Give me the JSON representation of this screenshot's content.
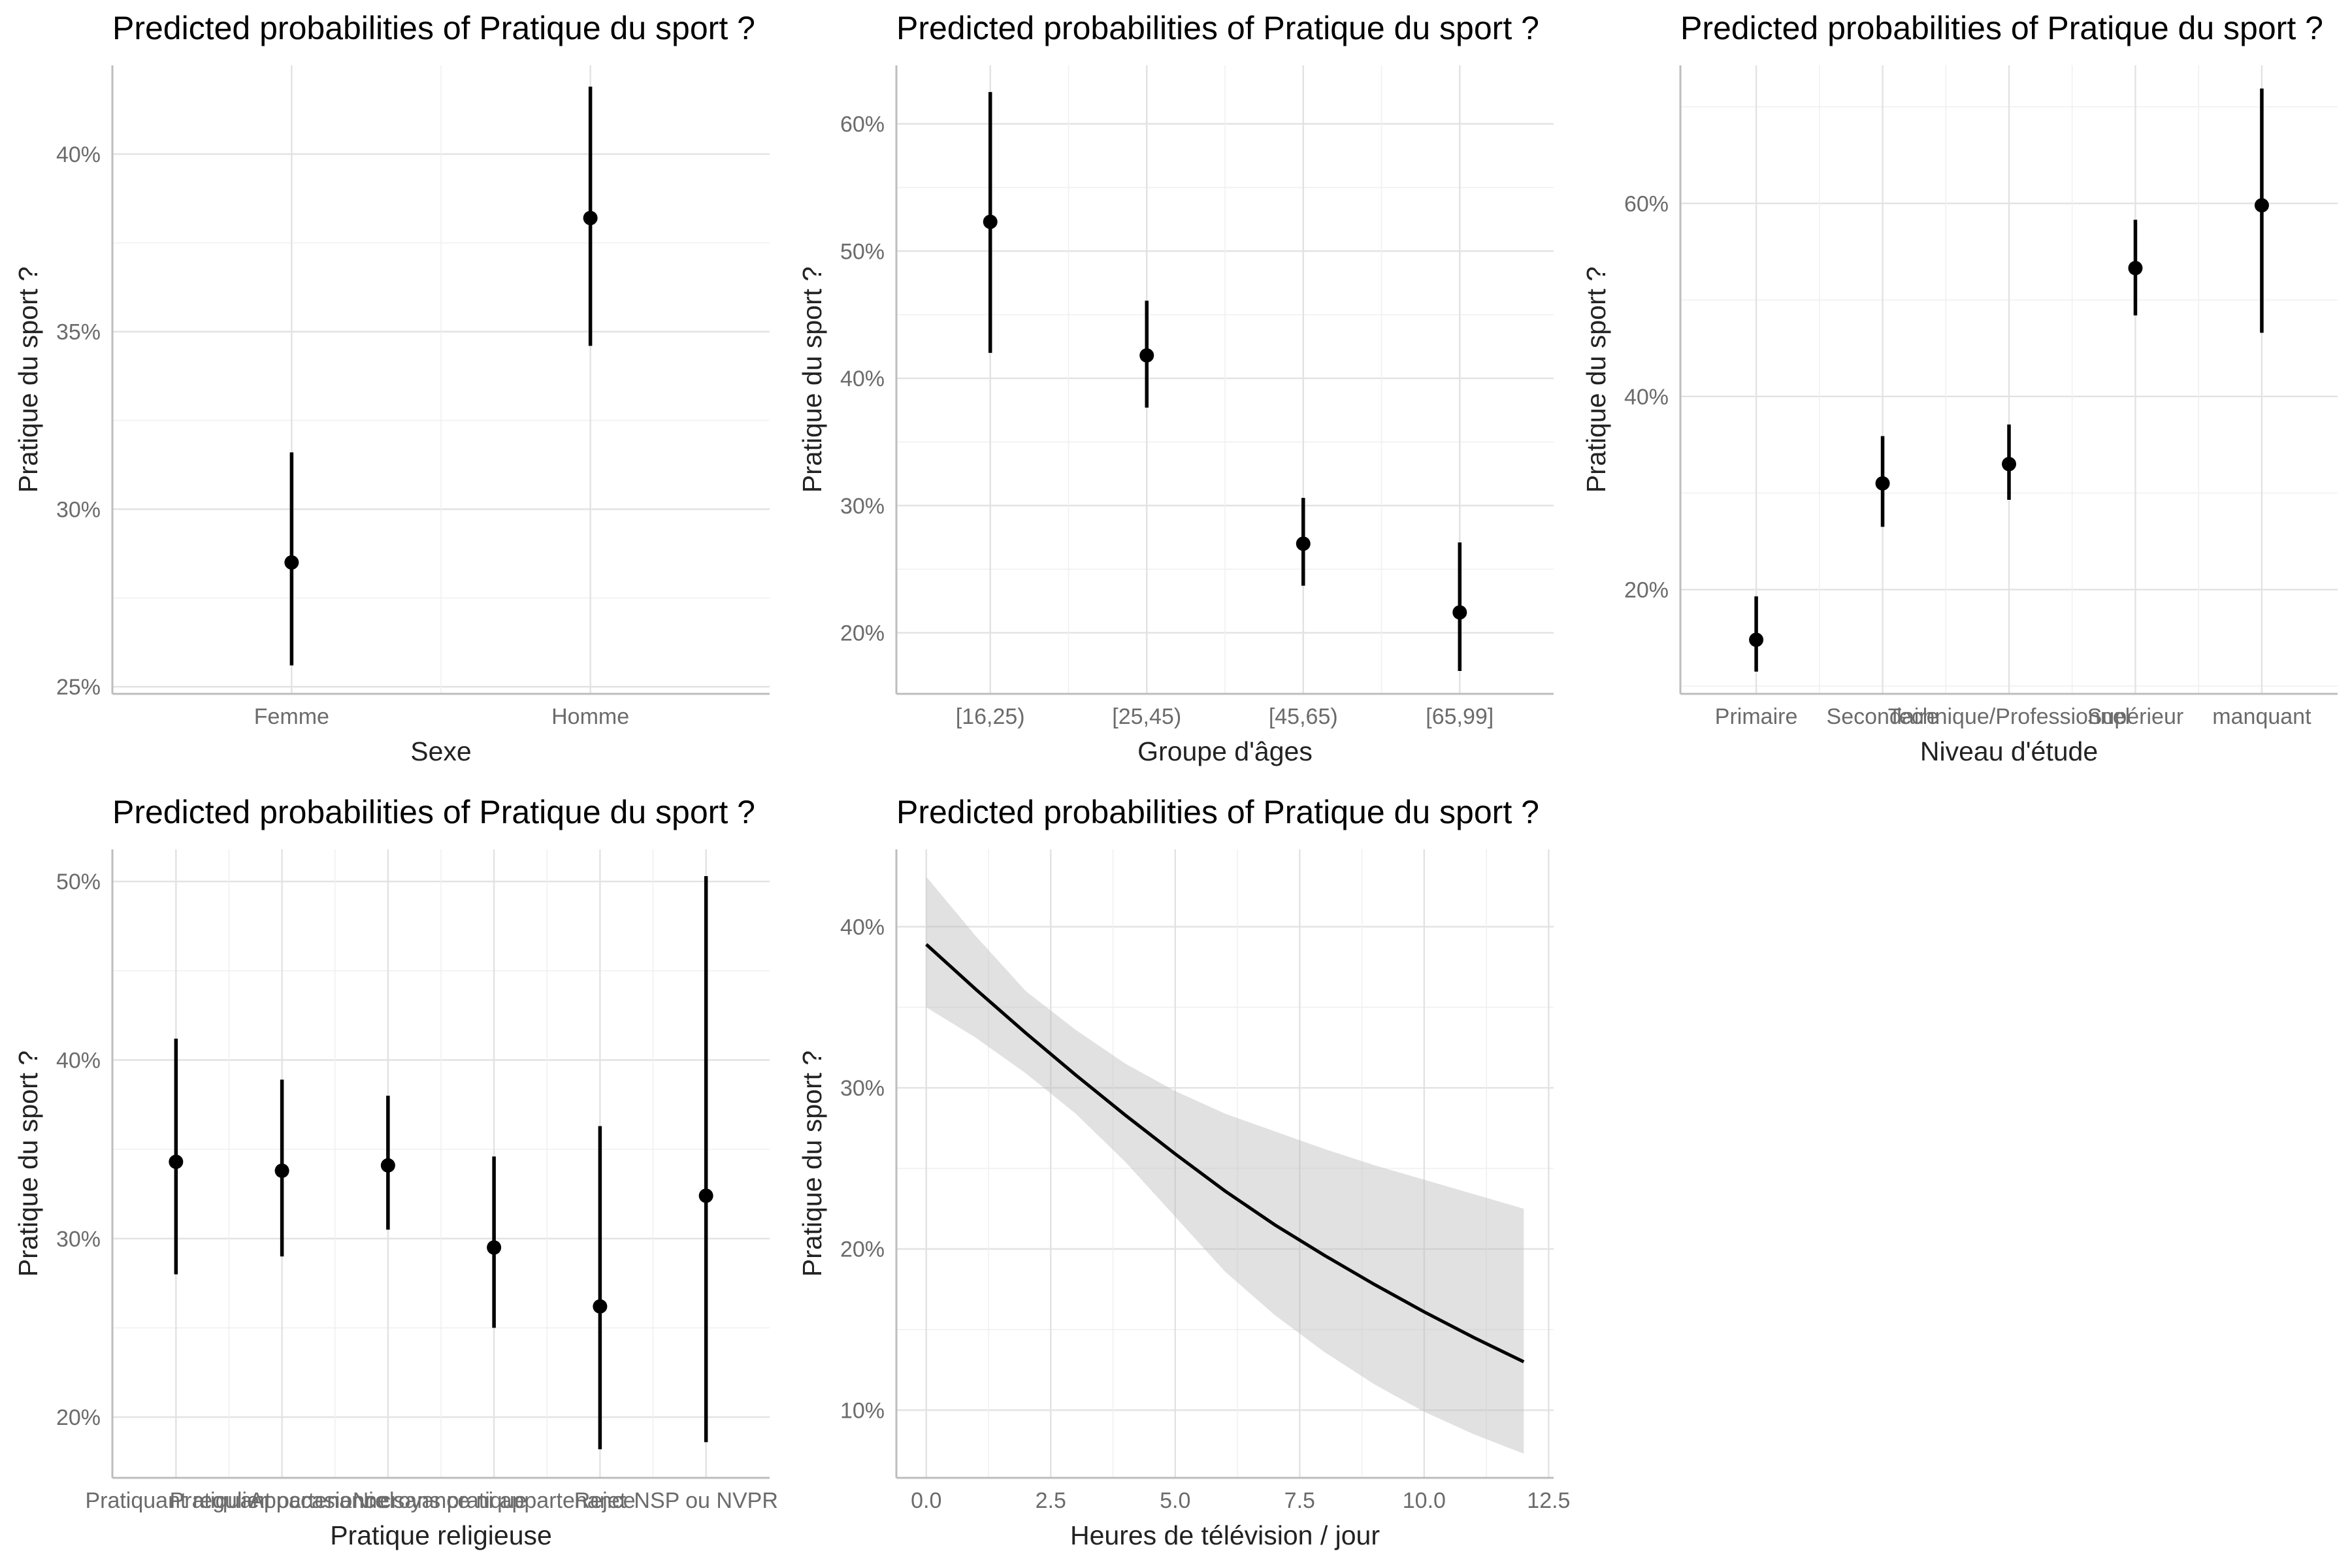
{
  "chart_data": [
    {
      "type": "errorbar",
      "title": "Predicted probabilities of Pratique du sport ?",
      "xlabel": "Sexe",
      "ylabel": "Pratique du sport ?",
      "categories": [
        "Femme",
        "Homme"
      ],
      "values": [
        28.5,
        38.2
      ],
      "ci_low": [
        25.6,
        34.6
      ],
      "ci_high": [
        31.6,
        41.9
      ],
      "ylim": [
        24.8,
        42.5
      ],
      "yticks": [
        25,
        30,
        35,
        40
      ],
      "ytick_labels": [
        "25%",
        "30%",
        "35%",
        "40%"
      ]
    },
    {
      "type": "errorbar",
      "title": "Predicted probabilities of Pratique du sport ?",
      "xlabel": "Groupe d'âges",
      "ylabel": "Pratique du sport ?",
      "categories": [
        "[16,25)",
        "[25,45)",
        "[45,65)",
        "[65,99]"
      ],
      "values": [
        52.3,
        41.8,
        27.0,
        21.6
      ],
      "ci_low": [
        42.0,
        37.7,
        23.7,
        17.0
      ],
      "ci_high": [
        62.5,
        46.1,
        30.6,
        27.1
      ],
      "ylim": [
        15.2,
        64.6
      ],
      "yticks": [
        20,
        30,
        40,
        50,
        60
      ],
      "ytick_labels": [
        "20%",
        "30%",
        "40%",
        "50%",
        "60%"
      ]
    },
    {
      "type": "errorbar",
      "title": "Predicted probabilities of Pratique du sport ?",
      "xlabel": "Niveau d'étude",
      "ylabel": "Pratique du sport ?",
      "categories": [
        "Primaire",
        "Secondaire",
        "Technique/Professionnel",
        "Supérieur",
        "manquant"
      ],
      "values": [
        14.8,
        31.0,
        33.0,
        53.3,
        59.8
      ],
      "ci_low": [
        11.5,
        26.5,
        29.3,
        48.4,
        46.6
      ],
      "ci_high": [
        19.3,
        35.9,
        37.1,
        58.3,
        71.9
      ],
      "ylim": [
        9.2,
        74.3
      ],
      "yticks": [
        20,
        40,
        60
      ],
      "ytick_labels": [
        "20%",
        "40%",
        "60%"
      ]
    },
    {
      "type": "errorbar",
      "title": "Predicted probabilities of Pratique du sport ?",
      "xlabel": "Pratique religieuse",
      "ylabel": "Pratique du sport ?",
      "categories": [
        "Pratiquant regulier",
        "Pratiquant occasionnel",
        "Appartenance sans pratique",
        "Ni croyance ni appartenance",
        "Rejet",
        "NSP ou NVPR"
      ],
      "values": [
        34.3,
        33.8,
        34.1,
        29.5,
        26.2,
        32.4
      ],
      "ci_low": [
        28.0,
        29.0,
        30.5,
        25.0,
        18.2,
        18.6
      ],
      "ci_high": [
        41.2,
        38.9,
        38.0,
        34.6,
        36.3,
        50.3
      ],
      "ylim": [
        16.6,
        51.8
      ],
      "yticks": [
        20,
        30,
        40,
        50
      ],
      "ytick_labels": [
        "20%",
        "30%",
        "40%",
        "50%"
      ]
    },
    {
      "type": "line",
      "title": "Predicted probabilities of Pratique du sport ?",
      "xlabel": "Heures de télévision / jour",
      "ylabel": "Pratique du sport ?",
      "x": [
        0,
        1,
        2,
        3,
        4,
        5,
        6,
        7,
        8,
        9,
        10,
        11,
        12
      ],
      "y": [
        38.9,
        36.1,
        33.4,
        30.8,
        28.3,
        25.9,
        23.6,
        21.5,
        19.6,
        17.8,
        16.1,
        14.5,
        13.0
      ],
      "ci_low": [
        35.0,
        33.1,
        30.9,
        28.4,
        25.4,
        22.0,
        18.6,
        15.9,
        13.6,
        11.6,
        9.9,
        8.5,
        7.3
      ],
      "ci_high": [
        43.1,
        39.4,
        36.0,
        33.6,
        31.5,
        29.8,
        28.4,
        27.3,
        26.2,
        25.2,
        24.3,
        23.4,
        22.5
      ],
      "xlim": [
        -0.6,
        12.6
      ],
      "ylim": [
        5.8,
        44.8
      ],
      "xticks": [
        0,
        2.5,
        5,
        7.5,
        10,
        12.5
      ],
      "xtick_labels": [
        "0.0",
        "2.5",
        "5.0",
        "7.5",
        "10.0",
        "12.5"
      ],
      "yticks": [
        10,
        20,
        30,
        40
      ],
      "ytick_labels": [
        "10%",
        "20%",
        "30%",
        "40%"
      ]
    }
  ]
}
